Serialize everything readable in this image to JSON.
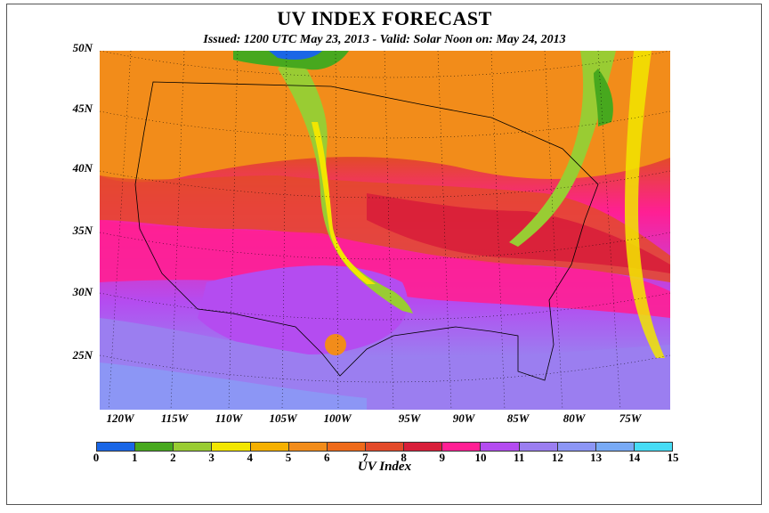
{
  "title": "UV INDEX FORECAST",
  "subtitle": "Issued: 1200 UTC May 23, 2013  -  Valid: Solar Noon on: May 24, 2013",
  "lat_labels": [
    "50N",
    "45N",
    "40N",
    "35N",
    "30N",
    "25N"
  ],
  "lon_labels": [
    "120W",
    "115W",
    "110W",
    "105W",
    "100W",
    "95W",
    "90W",
    "85W",
    "80W",
    "75W"
  ],
  "colorbar": {
    "label": "UV Index",
    "ticks": [
      "0",
      "1",
      "2",
      "3",
      "4",
      "5",
      "6",
      "7",
      "8",
      "9",
      "10",
      "11",
      "12",
      "13",
      "14",
      "15"
    ],
    "colors": [
      "#1a66e6",
      "#47a81e",
      "#99cc33",
      "#f2e600",
      "#f5b000",
      "#f28c1a",
      "#ee6a1a",
      "#e34a2a",
      "#d81e3a",
      "#ff1f94",
      "#b44cf0",
      "#9b7ef0",
      "#8c96f5",
      "#78aaf5",
      "#46dcf5"
    ]
  },
  "icons": [
    "map-grid",
    "state-boundaries"
  ]
}
